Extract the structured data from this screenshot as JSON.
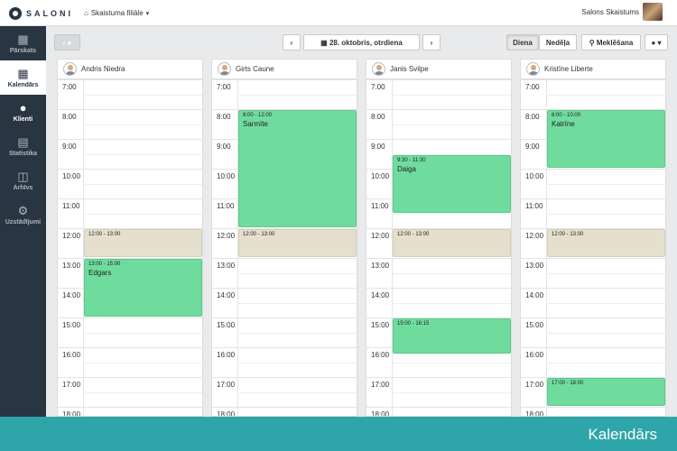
{
  "header": {
    "logo_text": "SALONI",
    "branch_label": "Skaistuma filiāle",
    "salon_name": "Salons Skaistums"
  },
  "sidebar": {
    "items": [
      {
        "label": "Pārskats",
        "icon": "grid-icon"
      },
      {
        "label": "Kalendārs",
        "icon": "calendar-icon"
      },
      {
        "label": "Klienti",
        "icon": "user-icon"
      },
      {
        "label": "Statistika",
        "icon": "bar-chart-icon"
      },
      {
        "label": "Arhīvs",
        "icon": "book-icon"
      },
      {
        "label": "Uzstādījumi",
        "icon": "gear-icon"
      }
    ]
  },
  "toolbar": {
    "date_label": "28. oktobris, otrdiena",
    "view_day": "Diena",
    "view_week": "Nedēļa",
    "search_label": "Meklēšana"
  },
  "hours": [
    "7:00",
    "8:00",
    "9:00",
    "10:00",
    "11:00",
    "12:00",
    "13:00",
    "14:00",
    "15:00",
    "16:00",
    "17:00",
    "18:00"
  ],
  "staff": [
    {
      "name": "Andris Niedra",
      "appointments": [
        {
          "time": "12:00 - 13:00",
          "client": "",
          "kind": "break"
        },
        {
          "time": "13:00 - 15:00",
          "client": "Edgars",
          "kind": "booking"
        }
      ]
    },
    {
      "name": "Girts Caune",
      "appointments": [
        {
          "time": "8:00 - 12:00",
          "client": "Sarmīte",
          "kind": "booking"
        },
        {
          "time": "12:00 - 13:00",
          "client": "",
          "kind": "break"
        }
      ]
    },
    {
      "name": "Janis Svilpe",
      "appointments": [
        {
          "time": "9:30 - 11:30",
          "client": "Daiga",
          "kind": "booking"
        },
        {
          "time": "12:00 - 13:00",
          "client": "",
          "kind": "break"
        },
        {
          "time": "15:00 - 16:15",
          "client": "",
          "kind": "booking"
        }
      ]
    },
    {
      "name": "Kristīne Liberte",
      "appointments": [
        {
          "time": "8:00 - 10:00",
          "client": "Katrīne",
          "kind": "booking"
        },
        {
          "time": "12:00 - 13:00",
          "client": "",
          "kind": "break"
        },
        {
          "time": "17:00 - 18:00",
          "client": "",
          "kind": "booking"
        }
      ]
    }
  ],
  "banner": {
    "title": "Kalendārs"
  },
  "colors": {
    "booking": "#6fdc9e",
    "break": "#e5dfcd",
    "sidebar": "#2a3542",
    "banner": "#2ea5a9"
  }
}
